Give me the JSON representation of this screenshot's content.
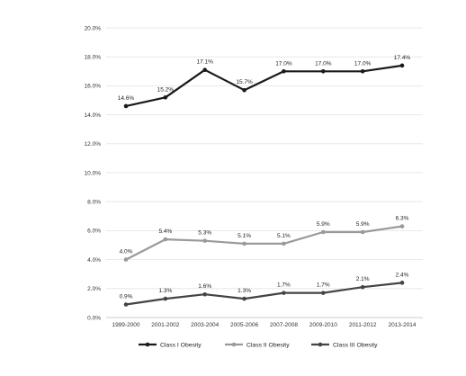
{
  "chart_data": {
    "type": "line",
    "title": "",
    "xlabel": "",
    "ylabel": "",
    "categories": [
      "1999-2000",
      "2001-2002",
      "2003-2004",
      "2005-2006",
      "2007-2008",
      "2009-2010",
      "2011-2012",
      "2013-2014"
    ],
    "ylim": [
      0,
      20
    ],
    "yticks": [
      "0.0%",
      "2.0%",
      "4.0%",
      "6.0%",
      "8.0%",
      "10.0%",
      "12.0%",
      "14.0%",
      "16.0%",
      "18.0%",
      "20.0%"
    ],
    "grid": true,
    "legend_position": "bottom",
    "series": [
      {
        "name": "Class I Obesity",
        "color": "#1a1a1a",
        "values": [
          14.6,
          15.2,
          17.1,
          15.7,
          17.0,
          17.0,
          17.0,
          17.4
        ],
        "labels": [
          "14.6%",
          "15.2%",
          "17.1%",
          "15.7%",
          "17.0%",
          "17.0%",
          "17.0%",
          "17.4%"
        ]
      },
      {
        "name": "Class II Obesity",
        "color": "#9a9a9a",
        "values": [
          4.0,
          5.4,
          5.3,
          5.1,
          5.1,
          5.9,
          5.9,
          6.3
        ],
        "labels": [
          "4.0%",
          "5.4%",
          "5.3%",
          "5.1%",
          "5.1%",
          "5.9%",
          "5.9%",
          "6.3%"
        ]
      },
      {
        "name": "Class III Obesity",
        "color": "#444444",
        "values": [
          0.9,
          1.3,
          1.6,
          1.3,
          1.7,
          1.7,
          2.1,
          2.4
        ],
        "labels": [
          "0.9%",
          "1.3%",
          "1.6%",
          "1.3%",
          "1.7%",
          "1.7%",
          "2.1%",
          "2.4%"
        ]
      }
    ]
  }
}
